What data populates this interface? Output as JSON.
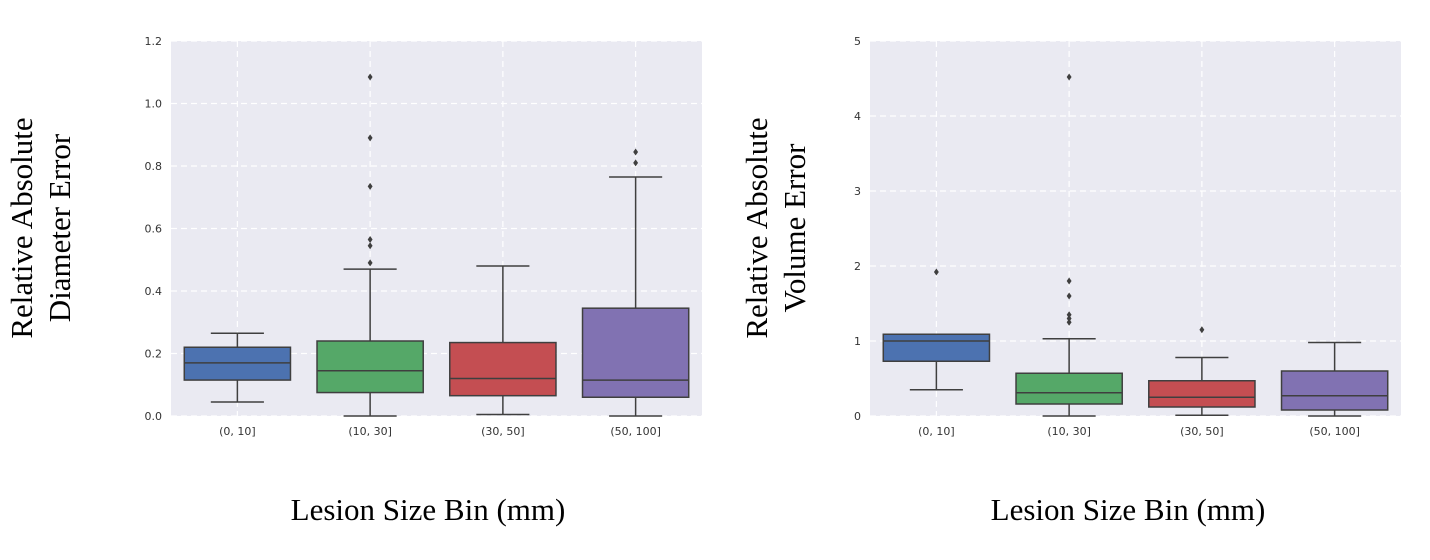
{
  "chart_data": [
    {
      "type": "box",
      "ylabel_lines": [
        "Relative Absolute",
        "Diameter Error"
      ],
      "xlabel": "Lesion Size Bin (mm)",
      "ylim": [
        0,
        1.2
      ],
      "yticks": [
        "0.0",
        "0.2",
        "0.4",
        "0.6",
        "0.8",
        "1.0",
        "1.2"
      ],
      "ytick_values": [
        0,
        0.2,
        0.4,
        0.6,
        0.8,
        1.0,
        1.2
      ],
      "categories": [
        "(0, 10]",
        "(10, 30]",
        "(30, 50]",
        "(50, 100]"
      ],
      "colors": [
        "#4c72b0",
        "#55a868",
        "#c44e52",
        "#8172b2"
      ],
      "boxes": [
        {
          "whislo": 0.045,
          "q1": 0.115,
          "med": 0.17,
          "q3": 0.22,
          "whishi": 0.265,
          "fliers": []
        },
        {
          "whislo": 0.0,
          "q1": 0.075,
          "med": 0.145,
          "q3": 0.24,
          "whishi": 0.47,
          "fliers": [
            0.49,
            0.545,
            0.565,
            0.735,
            0.89,
            1.085
          ]
        },
        {
          "whislo": 0.005,
          "q1": 0.065,
          "med": 0.12,
          "q3": 0.235,
          "whishi": 0.48,
          "fliers": []
        },
        {
          "whislo": 0.0,
          "q1": 0.06,
          "med": 0.115,
          "q3": 0.345,
          "whishi": 0.765,
          "fliers": [
            0.81,
            0.845
          ]
        }
      ]
    },
    {
      "type": "box",
      "ylabel_lines": [
        "Relative Absolute",
        "Volume Error"
      ],
      "xlabel": "Lesion Size Bin (mm)",
      "ylim": [
        0,
        5
      ],
      "yticks": [
        "0",
        "1",
        "2",
        "3",
        "4",
        "5"
      ],
      "ytick_values": [
        0,
        1,
        2,
        3,
        4,
        5
      ],
      "categories": [
        "(0, 10]",
        "(10, 30]",
        "(30, 50]",
        "(50, 100]"
      ],
      "colors": [
        "#4c72b0",
        "#55a868",
        "#c44e52",
        "#8172b2"
      ],
      "boxes": [
        {
          "whislo": 0.35,
          "q1": 0.73,
          "med": 1.0,
          "q3": 1.09,
          "whishi": 1.09,
          "fliers": [
            1.92
          ]
        },
        {
          "whislo": 0.0,
          "q1": 0.16,
          "med": 0.31,
          "q3": 0.57,
          "whishi": 1.03,
          "fliers": [
            1.25,
            1.3,
            1.35,
            1.6,
            1.8,
            4.52
          ]
        },
        {
          "whislo": 0.01,
          "q1": 0.12,
          "med": 0.25,
          "q3": 0.47,
          "whishi": 0.78,
          "fliers": [
            1.15
          ]
        },
        {
          "whislo": 0.0,
          "q1": 0.08,
          "med": 0.27,
          "q3": 0.6,
          "whishi": 0.98,
          "fliers": []
        }
      ]
    }
  ]
}
